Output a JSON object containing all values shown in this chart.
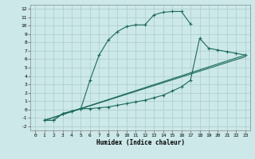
{
  "xlabel": "Humidex (Indice chaleur)",
  "bg_color": "#cce8e8",
  "grid_color": "#aacccc",
  "line_color": "#1a6b5a",
  "xlim": [
    -0.5,
    23.5
  ],
  "ylim": [
    -2.5,
    12.5
  ],
  "xticks": [
    0,
    1,
    2,
    3,
    4,
    5,
    6,
    7,
    8,
    9,
    10,
    11,
    12,
    13,
    14,
    15,
    16,
    17,
    18,
    19,
    20,
    21,
    22,
    23
  ],
  "yticks": [
    -2,
    -1,
    0,
    1,
    2,
    3,
    4,
    5,
    6,
    7,
    8,
    9,
    10,
    11,
    12
  ],
  "line1_x": [
    1,
    2,
    3,
    4,
    5,
    6,
    7,
    8,
    9,
    10,
    11,
    12,
    13,
    14,
    15,
    16,
    17
  ],
  "line1_y": [
    -1.3,
    -1.3,
    -0.5,
    -0.2,
    0.1,
    3.5,
    6.5,
    8.3,
    9.3,
    9.9,
    10.1,
    10.1,
    11.3,
    11.6,
    11.7,
    11.7,
    10.2
  ],
  "line2_x": [
    1,
    2,
    3,
    4,
    5,
    6,
    7,
    8,
    9,
    10,
    11,
    12,
    13,
    14,
    15,
    16,
    17,
    18,
    19,
    20,
    21,
    22,
    23
  ],
  "line2_y": [
    -1.3,
    -1.3,
    -0.5,
    -0.2,
    0.1,
    0.1,
    0.2,
    0.3,
    0.5,
    0.7,
    0.9,
    1.1,
    1.4,
    1.7,
    2.2,
    2.7,
    3.5,
    8.5,
    7.3,
    7.1,
    6.9,
    6.7,
    6.5
  ],
  "line3_x": [
    1,
    23
  ],
  "line3_y": [
    -1.3,
    6.5
  ],
  "line4_x": [
    1,
    23
  ],
  "line4_y": [
    -1.3,
    6.3
  ]
}
